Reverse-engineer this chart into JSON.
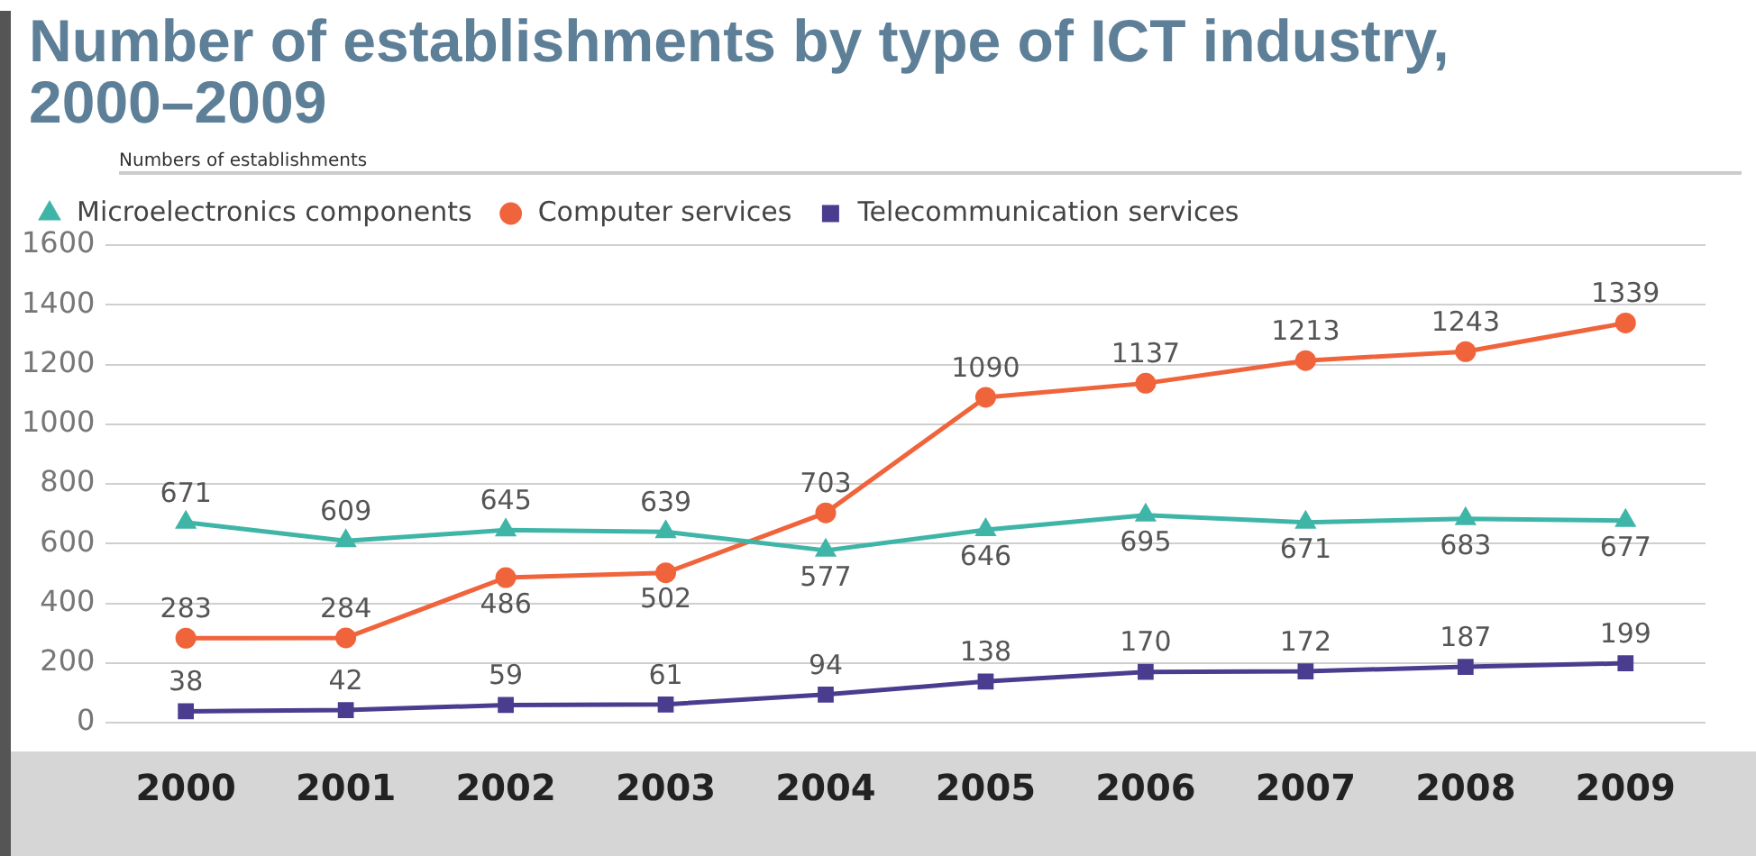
{
  "chart_data": {
    "type": "line",
    "title": "Number of establishments by type of ICT industry, 2000–2009",
    "ylabel": "Numbers of establishments",
    "categories": [
      "2000",
      "2001",
      "2002",
      "2003",
      "2004",
      "2005",
      "2006",
      "2007",
      "2008",
      "2009"
    ],
    "series": [
      {
        "name": "Microelectronics components",
        "color": "#3fb5a8",
        "marker": "triangle",
        "values": [
          671,
          609,
          645,
          639,
          577,
          646,
          695,
          671,
          683,
          677
        ]
      },
      {
        "name": "Computer services",
        "color": "#f0643c",
        "marker": "circle",
        "values": [
          283,
          284,
          486,
          502,
          703,
          1090,
          1137,
          1213,
          1243,
          1339
        ]
      },
      {
        "name": "Telecommunication services",
        "color": "#4a3d8f",
        "marker": "square",
        "values": [
          38,
          42,
          59,
          61,
          94,
          138,
          170,
          172,
          187,
          199
        ]
      }
    ],
    "ylim": [
      0,
      1600
    ],
    "yticks": [
      0,
      200,
      400,
      600,
      800,
      1000,
      1200,
      1400,
      1600
    ],
    "grid": "y",
    "legend": "top left",
    "data_labels": true,
    "line_style": "solid"
  }
}
